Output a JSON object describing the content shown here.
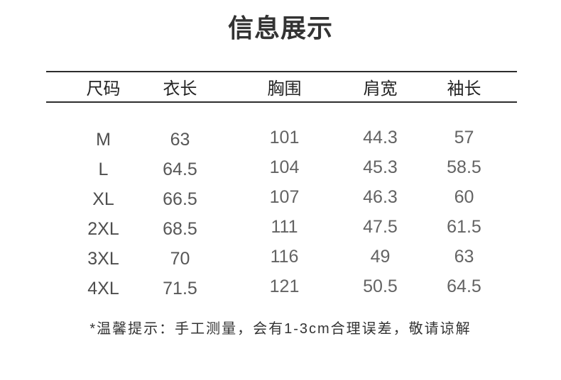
{
  "title": "信息展示",
  "note": "*温馨提示：手工测量，会有1-3cm合理误差，敬请谅解",
  "colors": {
    "background": "#ffffff",
    "title_text": "#333333",
    "header_text": "#242424",
    "value_text": "#636363",
    "rule_line": "#2d2d2d"
  },
  "table": {
    "headers": [
      "尺码",
      "衣长",
      "胸围",
      "肩宽",
      "袖长"
    ],
    "rows": [
      [
        "M",
        "63",
        "101",
        "44.3",
        "57"
      ],
      [
        "L",
        "64.5",
        "104",
        "45.3",
        "58.5"
      ],
      [
        "XL",
        "66.5",
        "107",
        "46.3",
        "60"
      ],
      [
        "2XL",
        "68.5",
        "111",
        "47.5",
        "61.5"
      ],
      [
        "3XL",
        "70",
        "116",
        "49",
        "63"
      ],
      [
        "4XL",
        "71.5",
        "121",
        "50.5",
        "64.5"
      ]
    ]
  }
}
